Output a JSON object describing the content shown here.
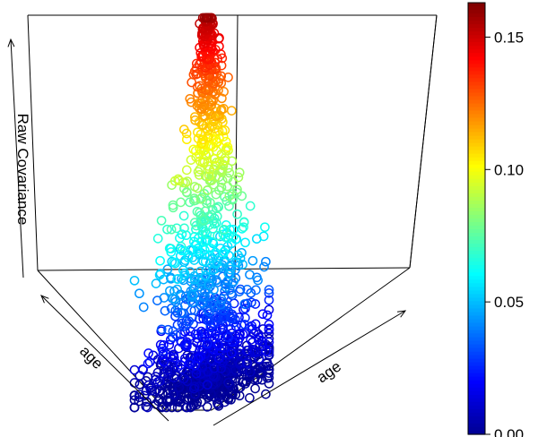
{
  "chart_data": {
    "type": "scatter3d",
    "title": "",
    "x_label": "age",
    "y_label": "age",
    "z_label": "Raw Covariance",
    "z_range": [
      0.0,
      0.16
    ],
    "colorbar": {
      "ticks": [
        0.0,
        0.05,
        0.1,
        0.15
      ],
      "tick_labels": [
        "0.00",
        "0.05",
        "0.10",
        "0.15"
      ],
      "range": [
        0.0,
        0.163
      ],
      "palette": [
        "#00008F",
        "#0000FF",
        "#0080FF",
        "#00FFFF",
        "#80FF80",
        "#FFFF00",
        "#FF8000",
        "#FF0000",
        "#800000"
      ]
    },
    "marker": "open-circle",
    "n_points": 1400,
    "z_distribution_note_values": {
      "dense_band": [
        0.0,
        0.05
      ],
      "peak_value": 0.16
    }
  }
}
